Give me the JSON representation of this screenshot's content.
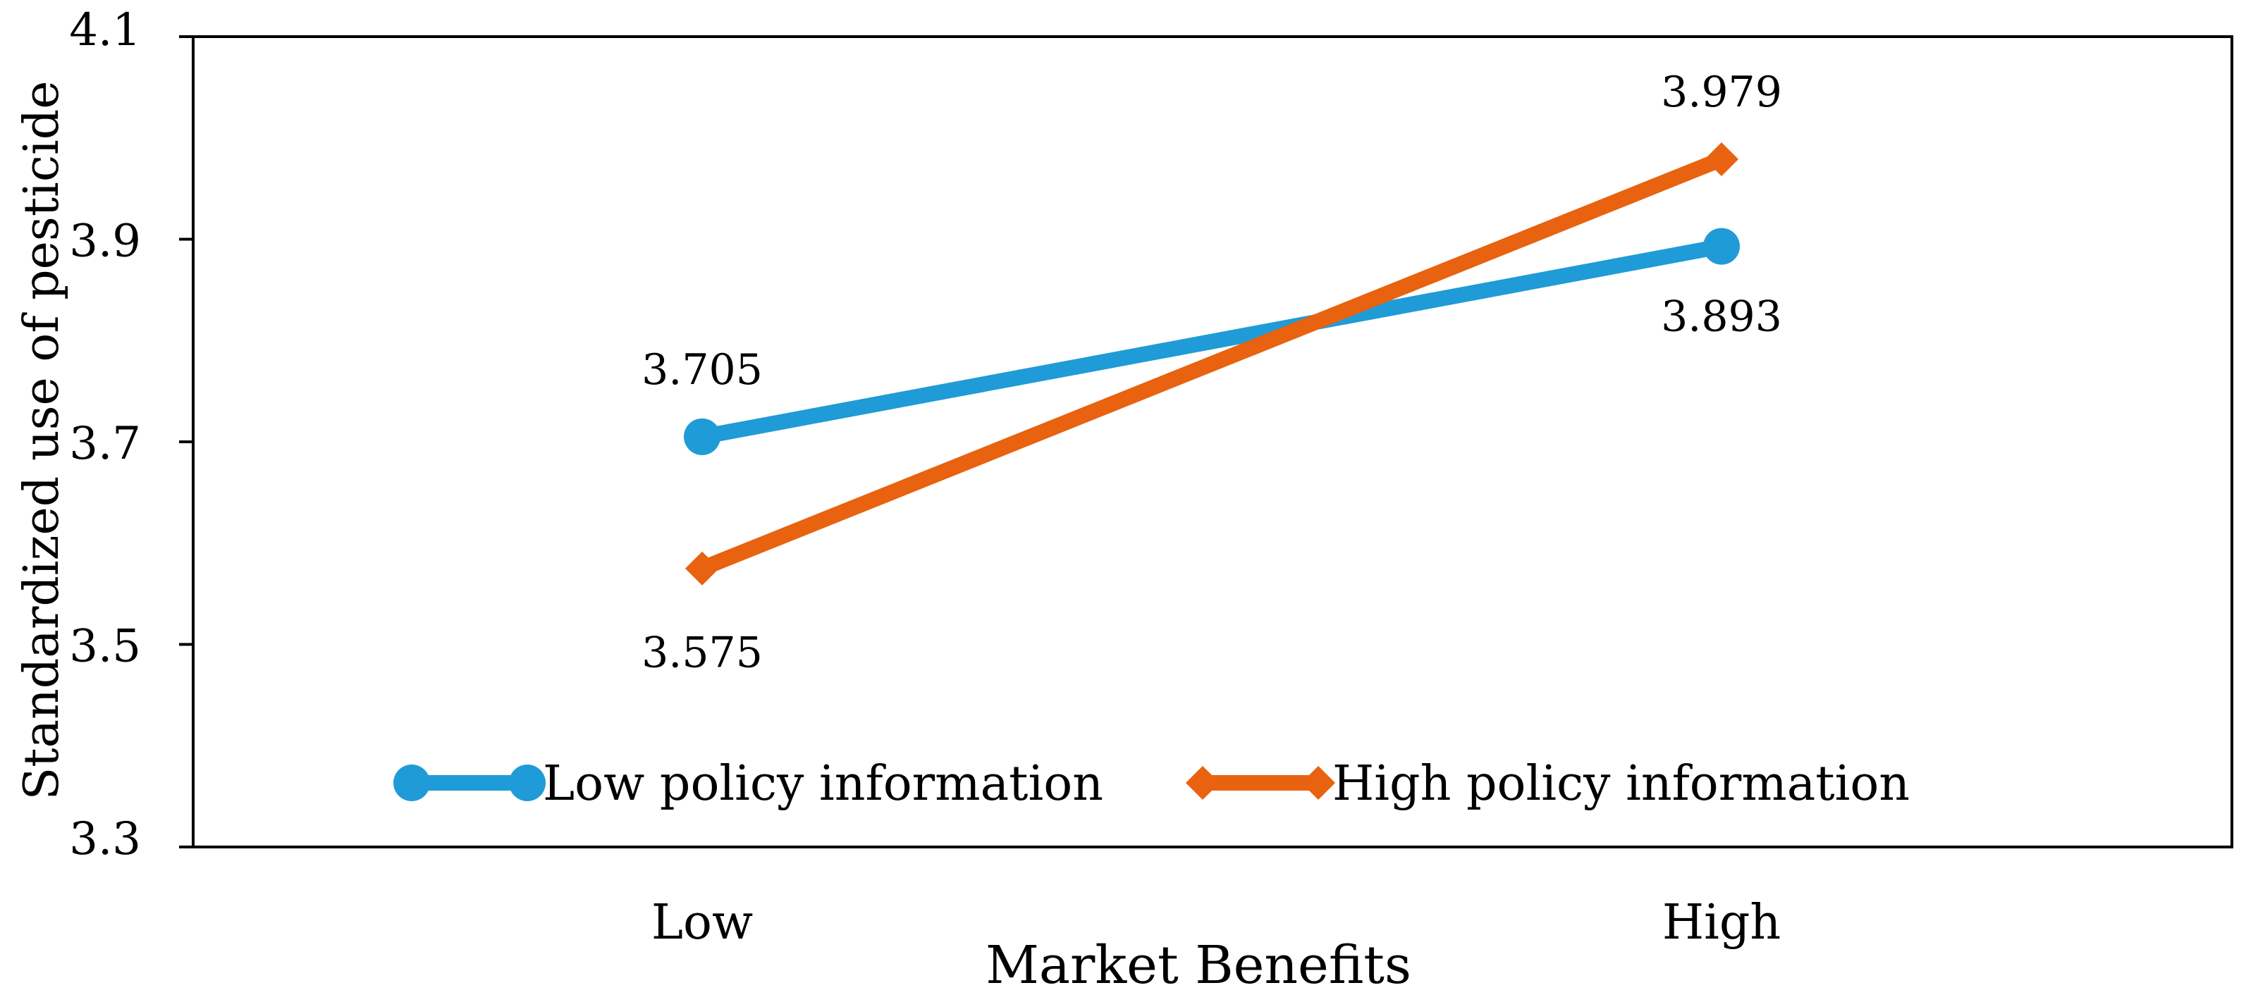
{
  "chart_data": {
    "type": "line",
    "categories": [
      "Low",
      "High"
    ],
    "series": [
      {
        "name": "Low policy information",
        "values": [
          3.705,
          3.893
        ],
        "value_labels": [
          "3.705",
          "3.893"
        ],
        "color": "#1f9bd7",
        "marker": "circle"
      },
      {
        "name": "High policy information",
        "values": [
          3.575,
          3.979
        ],
        "value_labels": [
          "3.575",
          "3.979"
        ],
        "color": "#e8620f",
        "marker": "diamond"
      }
    ],
    "xlabel": "Market Benefits",
    "ylabel": "Standardized use of pesticide",
    "ylim": [
      3.3,
      4.1
    ],
    "yticks": [
      3.3,
      3.5,
      3.7,
      3.9,
      4.1
    ],
    "ytick_labels": [
      "3.3",
      "3.5",
      "3.7",
      "3.9",
      "4.1"
    ],
    "grid": false,
    "legend_position": "bottom-inside"
  }
}
